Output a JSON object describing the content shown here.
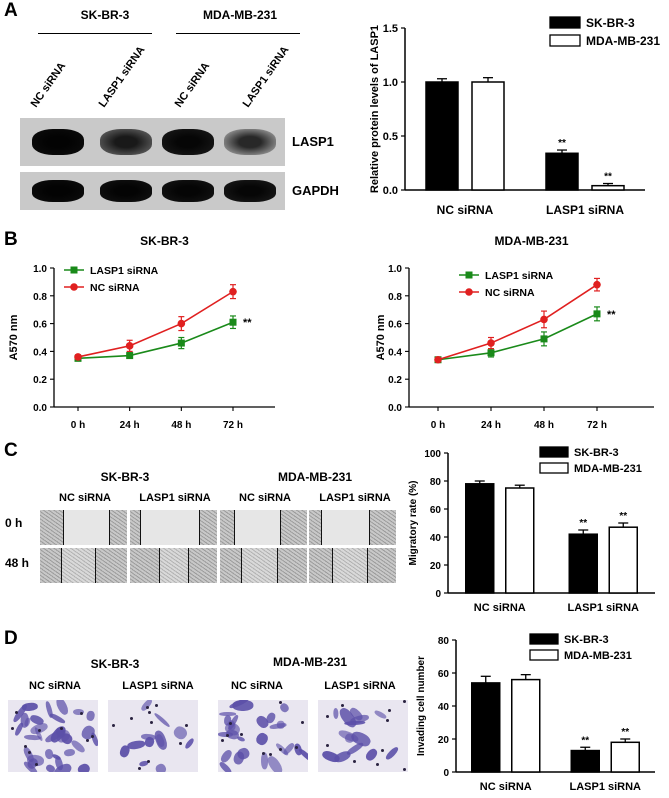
{
  "panels": {
    "A": {
      "letter": "A",
      "blot": {
        "cell_lines": [
          "SK-BR-3",
          "MDA-MB-231"
        ],
        "lanes": [
          "NC siRNA",
          "LASP1 siRNA",
          "NC siRNA",
          "LASP1 siRNA"
        ],
        "bands": [
          "LASP1",
          "GAPDH"
        ],
        "lasp1_intensity": [
          1.0,
          0.62,
          0.95,
          0.35
        ],
        "gapdh_intensity": [
          1.0,
          0.98,
          0.97,
          0.95
        ]
      }
    },
    "B": {
      "letter": "B"
    },
    "C": {
      "letter": "C",
      "cell_lines": [
        "SK-BR-3",
        "MDA-MB-231"
      ],
      "columns": [
        "NC siRNA",
        "LASP1 siRNA",
        "NC siRNA",
        "LASP1 siRNA"
      ],
      "rows": [
        "0 h",
        "48 h"
      ]
    },
    "D": {
      "letter": "D",
      "cell_lines": [
        "SK-BR-3",
        "MDA-MB-231"
      ],
      "columns": [
        "NC siRNA",
        "LASP1 siRNA",
        "NC siRNA",
        "LASP1 siRNA"
      ]
    }
  },
  "chart_data": [
    {
      "id": "A",
      "type": "bar",
      "categories": [
        "NC siRNA",
        "LASP1 siRNA"
      ],
      "series": [
        {
          "name": "SK-BR-3",
          "values": [
            1.0,
            0.34
          ],
          "errors": [
            0.03,
            0.03
          ],
          "sig": [
            "",
            "**"
          ],
          "color": "#000000"
        },
        {
          "name": "MDA-MB-231",
          "values": [
            1.0,
            0.04
          ],
          "errors": [
            0.04,
            0.02
          ],
          "sig": [
            "",
            "**"
          ],
          "color": "#ffffff"
        }
      ],
      "ylabel": "Relative protein levels of LASP1",
      "ylim": [
        0,
        1.5
      ],
      "yticks": [
        "0.0",
        "0.5",
        "1.0",
        "1.5"
      ],
      "legend": "top-right"
    },
    {
      "id": "B1",
      "type": "line",
      "title": "SK-BR-3",
      "x": [
        "0 h",
        "24 h",
        "48 h",
        "72 h"
      ],
      "series": [
        {
          "name": "LASP1 siRNA",
          "values": [
            0.35,
            0.37,
            0.46,
            0.61
          ],
          "errors": [
            0.015,
            0.02,
            0.04,
            0.045
          ],
          "color": "#1a8a1a",
          "marker": "square"
        },
        {
          "name": "NC siRNA",
          "values": [
            0.36,
            0.44,
            0.6,
            0.83
          ],
          "errors": [
            0.015,
            0.04,
            0.05,
            0.05
          ],
          "color": "#e02020",
          "marker": "circle"
        }
      ],
      "annotation": "**",
      "ylabel": "A570 nm",
      "ylim": [
        0,
        1.0
      ],
      "yticks": [
        "0.0",
        "0.2",
        "0.4",
        "0.6",
        "0.8",
        "1.0"
      ],
      "legend": "top-left"
    },
    {
      "id": "B2",
      "type": "line",
      "title": "MDA-MB-231",
      "x": [
        "0 h",
        "24 h",
        "48 h",
        "72 h"
      ],
      "series": [
        {
          "name": "LASP1 siRNA",
          "values": [
            0.34,
            0.39,
            0.49,
            0.67
          ],
          "errors": [
            0.015,
            0.03,
            0.05,
            0.05
          ],
          "color": "#1a8a1a",
          "marker": "square"
        },
        {
          "name": "NC siRNA",
          "values": [
            0.34,
            0.46,
            0.63,
            0.88
          ],
          "errors": [
            0.015,
            0.04,
            0.06,
            0.045
          ],
          "color": "#e02020",
          "marker": "circle"
        }
      ],
      "annotation": "**",
      "ylabel": "A570 nm",
      "ylim": [
        0,
        1.0
      ],
      "yticks": [
        "0.0",
        "0.2",
        "0.4",
        "0.6",
        "0.8",
        "1.0"
      ],
      "legend": "top-left"
    },
    {
      "id": "C",
      "type": "bar",
      "categories": [
        "NC siRNA",
        "LASP1 siRNA"
      ],
      "series": [
        {
          "name": "SK-BR-3",
          "values": [
            78,
            42
          ],
          "errors": [
            2,
            3
          ],
          "sig": [
            "",
            "**"
          ],
          "color": "#000000"
        },
        {
          "name": "MDA-MB-231",
          "values": [
            75,
            47
          ],
          "errors": [
            2,
            3
          ],
          "sig": [
            "",
            "**"
          ],
          "color": "#ffffff"
        }
      ],
      "ylabel": "Migratory rate (%)",
      "ylim": [
        0,
        100
      ],
      "yticks": [
        "0",
        "20",
        "40",
        "60",
        "80",
        "100"
      ],
      "legend": "top-right"
    },
    {
      "id": "D",
      "type": "bar",
      "categories": [
        "NC siRNA",
        "LASP1 siRNA"
      ],
      "series": [
        {
          "name": "SK-BR-3",
          "values": [
            54,
            13
          ],
          "errors": [
            4,
            2
          ],
          "sig": [
            "",
            "**"
          ],
          "color": "#000000"
        },
        {
          "name": "MDA-MB-231",
          "values": [
            56,
            18
          ],
          "errors": [
            3,
            2
          ],
          "sig": [
            "",
            "**"
          ],
          "color": "#ffffff"
        }
      ],
      "ylabel": "Invading cell number",
      "ylim": [
        0,
        80
      ],
      "yticks": [
        "0",
        "20",
        "40",
        "60",
        "80"
      ],
      "legend": "top-right"
    }
  ]
}
